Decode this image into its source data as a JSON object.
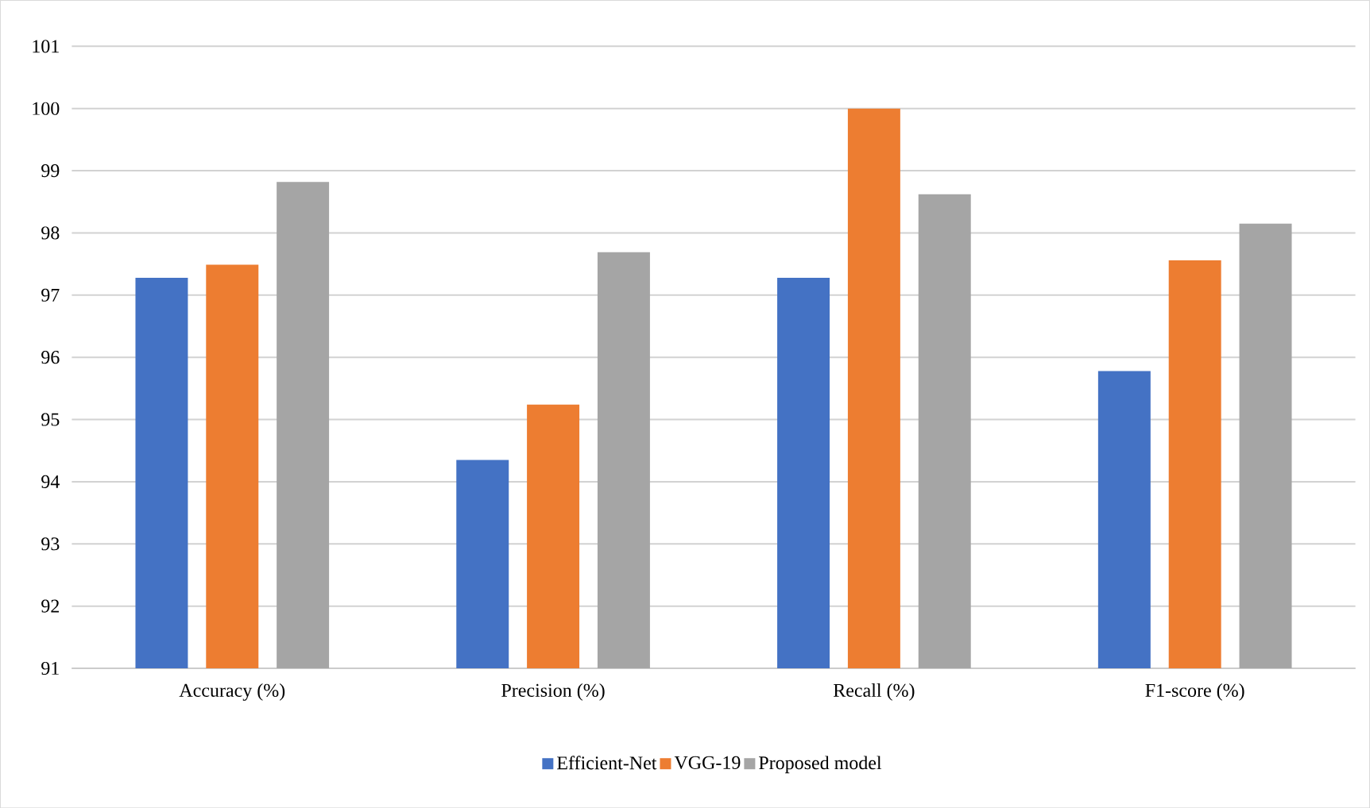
{
  "chart_data": {
    "type": "bar",
    "categories": [
      "Accuracy (%)",
      "Precision (%)",
      "Recall (%)",
      "F1-score (%)"
    ],
    "series": [
      {
        "name": "Efficient-Net",
        "color": "#4472c4",
        "values": [
          97.28,
          94.35,
          97.28,
          95.78
        ]
      },
      {
        "name": "VGG-19",
        "color": "#ed7d31",
        "values": [
          97.49,
          95.24,
          100,
          97.56
        ]
      },
      {
        "name": "Proposed model",
        "color": "#a5a5a5",
        "values": [
          98.82,
          97.69,
          98.62,
          98.15
        ]
      }
    ],
    "ylim": [
      91,
      101
    ],
    "yticks": [
      91,
      92,
      93,
      94,
      95,
      96,
      97,
      98,
      99,
      100,
      101
    ],
    "grid": "y",
    "legend": "bottom"
  }
}
